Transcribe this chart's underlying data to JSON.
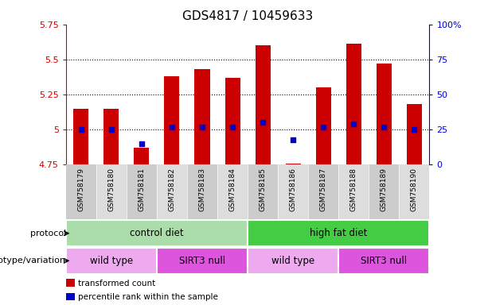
{
  "title": "GDS4817 / 10459633",
  "samples": [
    "GSM758179",
    "GSM758180",
    "GSM758181",
    "GSM758182",
    "GSM758183",
    "GSM758184",
    "GSM758185",
    "GSM758186",
    "GSM758187",
    "GSM758188",
    "GSM758189",
    "GSM758190"
  ],
  "bar_tops": [
    5.15,
    5.15,
    4.87,
    5.38,
    5.43,
    5.37,
    5.6,
    4.755,
    5.3,
    5.61,
    5.47,
    5.18
  ],
  "bar_bottoms": [
    4.75,
    4.75,
    4.75,
    4.75,
    4.75,
    4.75,
    4.75,
    4.75,
    4.75,
    4.75,
    4.75,
    4.75
  ],
  "blue_dots": [
    25,
    25,
    15,
    27,
    27,
    27,
    30,
    18,
    27,
    29,
    27,
    25
  ],
  "ylim_left": [
    4.75,
    5.75
  ],
  "ylim_right": [
    0,
    100
  ],
  "yticks_left": [
    4.75,
    5.0,
    5.25,
    5.5,
    5.75
  ],
  "yticks_right": [
    0,
    25,
    50,
    75,
    100
  ],
  "ytick_labels_left": [
    "4.75",
    "5",
    "5.25",
    "5.5",
    "5.75"
  ],
  "ytick_labels_right": [
    "0",
    "25",
    "50",
    "75",
    "100%"
  ],
  "hlines": [
    5.0,
    5.25,
    5.5
  ],
  "bar_color": "#cc0000",
  "dot_color": "#0000cc",
  "protocol_groups": [
    {
      "label": "control diet",
      "start": 0,
      "end": 6,
      "color": "#aaddaa"
    },
    {
      "label": "high fat diet",
      "start": 6,
      "end": 12,
      "color": "#44cc44"
    }
  ],
  "genotype_groups": [
    {
      "label": "wild type",
      "start": 0,
      "end": 3,
      "color": "#eeaaee"
    },
    {
      "label": "SIRT3 null",
      "start": 3,
      "end": 6,
      "color": "#dd55dd"
    },
    {
      "label": "wild type",
      "start": 6,
      "end": 9,
      "color": "#eeaaee"
    },
    {
      "label": "SIRT3 null",
      "start": 9,
      "end": 12,
      "color": "#dd55dd"
    }
  ],
  "protocol_label": "protocol",
  "genotype_label": "genotype/variation",
  "legend_items": [
    {
      "label": "transformed count",
      "color": "#cc0000"
    },
    {
      "label": "percentile rank within the sample",
      "color": "#0000cc"
    }
  ],
  "bar_width": 0.5,
  "background_color": "#ffffff",
  "tick_color_left": "#cc0000",
  "tick_color_right": "#0000cc",
  "title_fontsize": 11,
  "axis_fontsize": 8,
  "xtick_col_even": "#cccccc",
  "xtick_col_odd": "#dddddd"
}
